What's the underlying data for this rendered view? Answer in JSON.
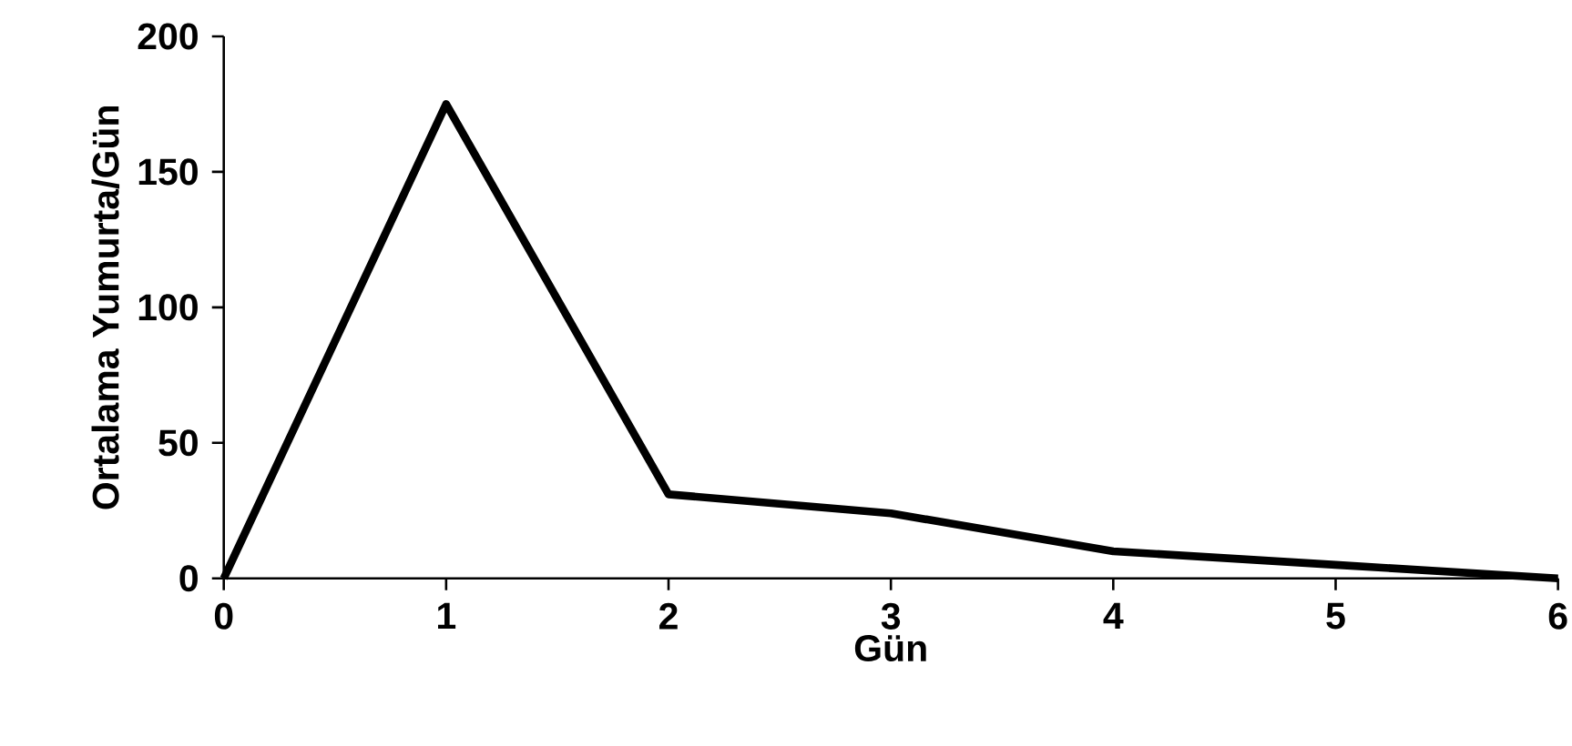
{
  "chart_data": {
    "type": "line",
    "xlabel": "Gün",
    "ylabel": "Ortalama Yumurta/Gün",
    "x": [
      0,
      1,
      2,
      3,
      4,
      5,
      6
    ],
    "values": [
      0,
      175,
      31,
      24,
      10,
      5,
      0
    ],
    "color": "#000000",
    "xlim": [
      0,
      6
    ],
    "xticks": [
      0,
      1,
      2,
      3,
      4,
      5,
      6
    ],
    "ylim": [
      0,
      200
    ],
    "yticks": [
      0,
      50,
      100,
      150,
      200
    ],
    "marker": "none",
    "line_style": "solid"
  }
}
